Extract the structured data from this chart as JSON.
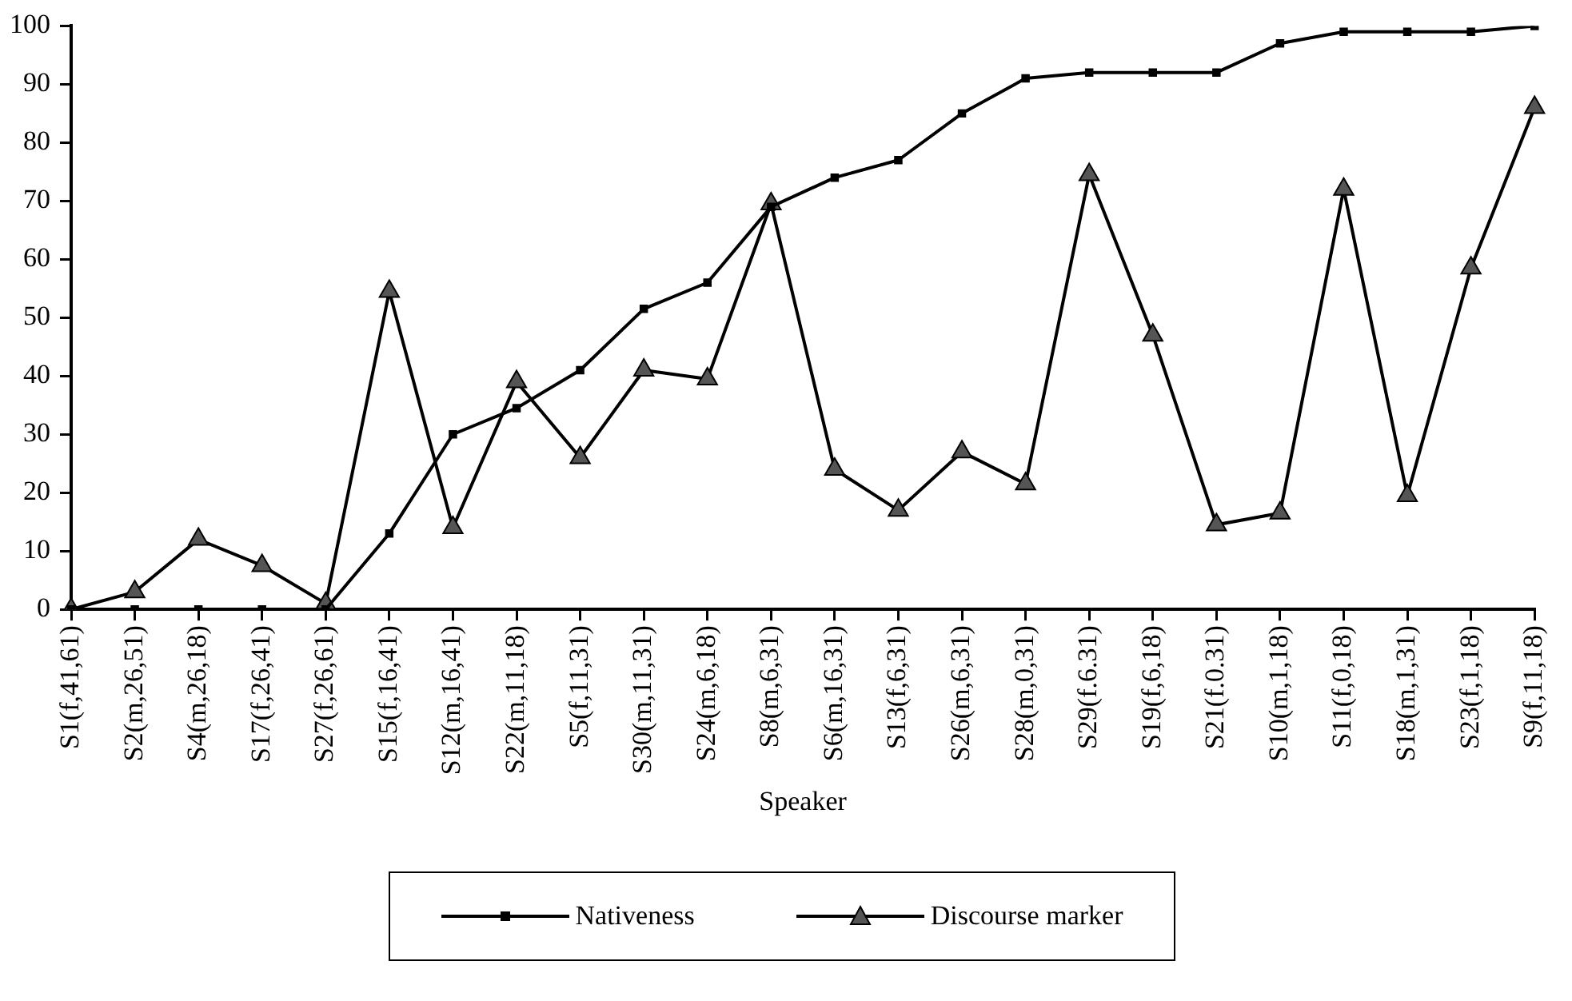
{
  "chart_data": {
    "type": "line",
    "xlabel": "Speaker",
    "categories": [
      "S1(f,41,61)",
      "S2(m,26,51)",
      "S4(m,26,18)",
      "S17(f,26,41)",
      "S27(f,26,61)",
      "S15(f,16,41)",
      "S12(m,16,41)",
      "S22(m,11,18)",
      "S5(f,11,31)",
      "S30(m,11,31)",
      "S24(m,6,18)",
      "S8(m,6,31)",
      "S6(m,16,31)",
      "S13(f,6,31)",
      "S26(m,6,31)",
      "S28(m,0,31)",
      "S29(f.6.31)",
      "S19(f,6,18)",
      "S21(f.0.31)",
      "S10(m,1,18)",
      "S11(f,0,18)",
      "S18(m,1,31)",
      "S23(f,1,18)",
      "S9(f,11,18)"
    ],
    "series": [
      {
        "name": "Nativeness",
        "color": "#000000",
        "marker": "square",
        "values": [
          0,
          0,
          0,
          0,
          0,
          13,
          30,
          34.5,
          41,
          51.5,
          56,
          69,
          74,
          77,
          85,
          91,
          92,
          92,
          92,
          97,
          99,
          99,
          99,
          100
        ]
      },
      {
        "name": "Discourse marker",
        "color": "#000000",
        "marker": "triangle",
        "values": [
          0,
          3,
          12,
          7.5,
          1,
          54.5,
          14,
          39,
          26,
          41,
          39.5,
          69.5,
          24,
          17,
          27,
          21.5,
          74.5,
          47,
          14.5,
          16.5,
          72,
          19.5,
          58.5,
          86
        ]
      }
    ],
    "ylim": [
      0,
      100
    ],
    "yticks": [
      0,
      10,
      20,
      30,
      40,
      50,
      60,
      70,
      80,
      90,
      100
    ],
    "grid": false,
    "legend": "bottom",
    "line_style": "solid"
  }
}
